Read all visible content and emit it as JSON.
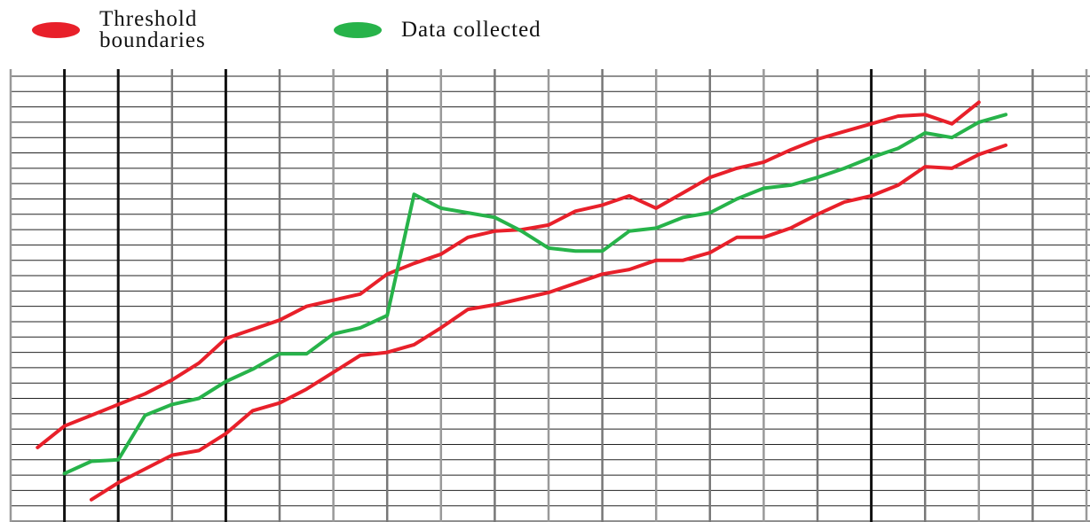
{
  "chart_data": {
    "type": "line",
    "x": [
      0.5,
      1,
      1.5,
      2,
      2.5,
      3,
      3.5,
      4,
      4.5,
      5,
      5.5,
      6,
      6.5,
      7,
      7.5,
      8,
      8.5,
      9,
      9.5,
      10,
      10.5,
      11,
      11.5,
      12,
      12.5,
      13,
      13.5,
      14,
      14.5,
      15,
      15.5,
      16,
      16.5,
      17,
      17.5,
      18,
      18.5
    ],
    "series": [
      {
        "name": "Threshold boundaries",
        "color": "#e8202a",
        "values": [
          4.8,
          6.2,
          6.9,
          7.6,
          8.3,
          9.2,
          10.3,
          11.9,
          12.5,
          13.1,
          14.0,
          14.4,
          14.8,
          16.1,
          16.8,
          17.4,
          18.5,
          18.9,
          19.0,
          19.3,
          20.2,
          20.6,
          21.2,
          20.4,
          21.4,
          22.4,
          23.0,
          23.4,
          24.2,
          24.9,
          25.4,
          25.9,
          26.4,
          26.5,
          25.9,
          27.3,
          null
        ],
        "lower": [
          null,
          null,
          1.4,
          2.5,
          3.4,
          4.3,
          4.6,
          5.7,
          7.2,
          7.7,
          8.6,
          9.7,
          10.8,
          11.0,
          11.5,
          12.6,
          13.8,
          14.1,
          14.5,
          14.9,
          15.5,
          16.1,
          16.4,
          17.0,
          17.0,
          17.5,
          18.5,
          18.5,
          19.1,
          20.0,
          20.8,
          21.2,
          21.9,
          23.1,
          23.0,
          23.9,
          24.5
        ]
      },
      {
        "name": "Data collected",
        "color": "#27b34a",
        "values": [
          null,
          3.1,
          3.9,
          4.0,
          6.9,
          7.6,
          8.0,
          9.1,
          9.9,
          10.9,
          10.9,
          12.2,
          12.6,
          13.4,
          21.3,
          20.4,
          20.1,
          19.8,
          18.9,
          17.8,
          17.6,
          17.6,
          18.9,
          19.1,
          19.8,
          20.1,
          21.0,
          21.7,
          21.9,
          22.4,
          23.0,
          23.7,
          24.3,
          25.3,
          25.0,
          26.0,
          26.5
        ]
      }
    ],
    "xlim": [
      0,
      20
    ],
    "xticks": [
      0,
      1,
      2,
      3,
      4,
      5,
      6,
      7,
      8,
      9,
      10,
      11,
      12,
      13,
      14,
      15,
      16,
      17,
      18,
      19,
      20
    ],
    "ylim": [
      0,
      29
    ],
    "yticks": [
      0,
      1,
      2,
      3,
      4,
      5,
      6,
      7,
      8,
      9,
      10,
      11,
      12,
      13,
      14,
      15,
      16,
      17,
      18,
      19,
      20,
      21,
      22,
      23,
      24,
      25,
      26,
      27,
      28,
      29
    ],
    "grid": true
  }
}
